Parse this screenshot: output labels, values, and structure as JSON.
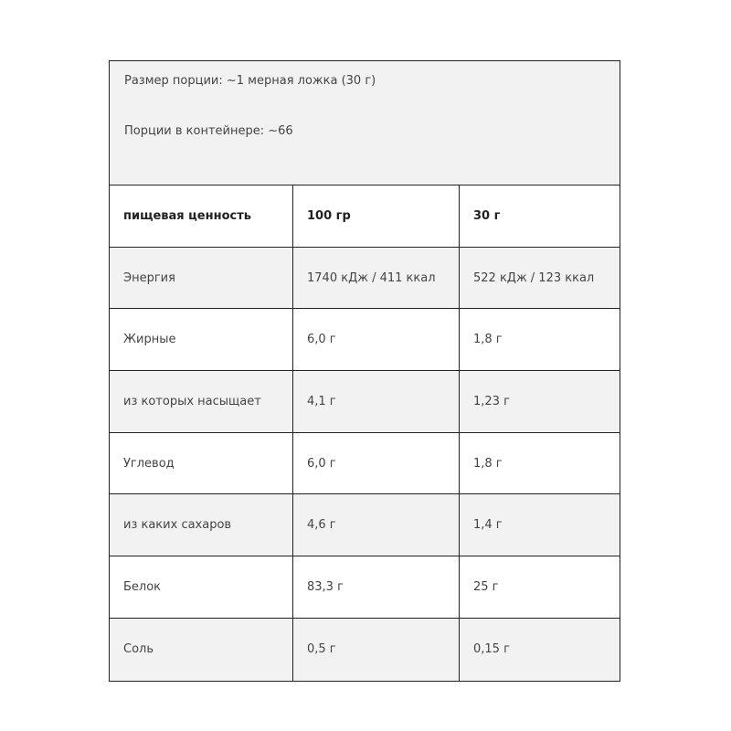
{
  "info": {
    "serving_size": "Размер порции: ~1 мерная ложка (30 г)",
    "servings_per_container": "Порции в контейнере: ~66"
  },
  "header": [
    "пищевая ценность",
    "100 гр",
    "30 г"
  ],
  "rows": [
    [
      "Энергия",
      "1740 кДж / 411 ккал",
      "522 кДж / 123 ккал"
    ],
    [
      "Жирные",
      "6,0 г",
      "1,8 г"
    ],
    [
      "из которых насыщает",
      "4,1 г",
      "1,23 г"
    ],
    [
      "Углевод",
      "6,0 г",
      "1,8 г"
    ],
    [
      "из каких сахаров",
      "4,6 г",
      "1,4 г"
    ],
    [
      "Белок",
      "83,3 г",
      "25 г"
    ],
    [
      "Соль",
      "0,5 г",
      "0,15 г"
    ]
  ]
}
